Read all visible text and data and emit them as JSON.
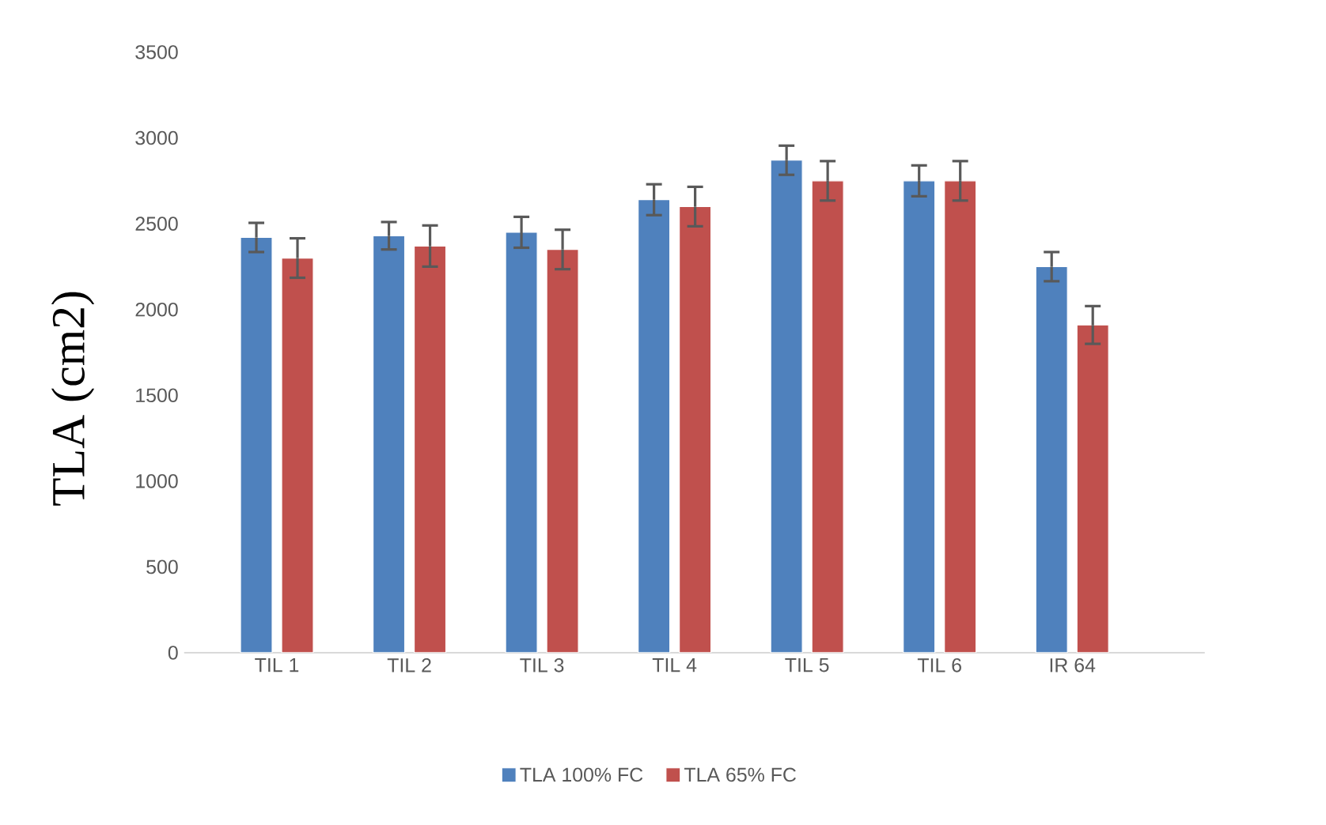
{
  "chart_data": {
    "type": "bar",
    "ylabel": "TLA (cm2)",
    "categories": [
      "TIL 1",
      "TIL 2",
      "TIL 3",
      "TIL 4",
      "TIL 5",
      "TIL 6",
      "IR 64"
    ],
    "series": [
      {
        "name": "TLA 100% FC",
        "color": "#4f81bd",
        "values": [
          2420,
          2430,
          2450,
          2640,
          2870,
          2750,
          2250
        ],
        "errors": [
          85,
          80,
          90,
          90,
          85,
          90,
          85
        ]
      },
      {
        "name": "TLA 65% FC",
        "color": "#c0504d",
        "values": [
          2300,
          2370,
          2350,
          2600,
          2750,
          2750,
          1910
        ],
        "errors": [
          115,
          120,
          115,
          115,
          115,
          115,
          110
        ]
      }
    ],
    "ylim": [
      0,
      3500
    ],
    "yticks": [
      0,
      500,
      1000,
      1500,
      2000,
      2500,
      3000,
      3500
    ],
    "grid": false,
    "legend": "bottom"
  }
}
